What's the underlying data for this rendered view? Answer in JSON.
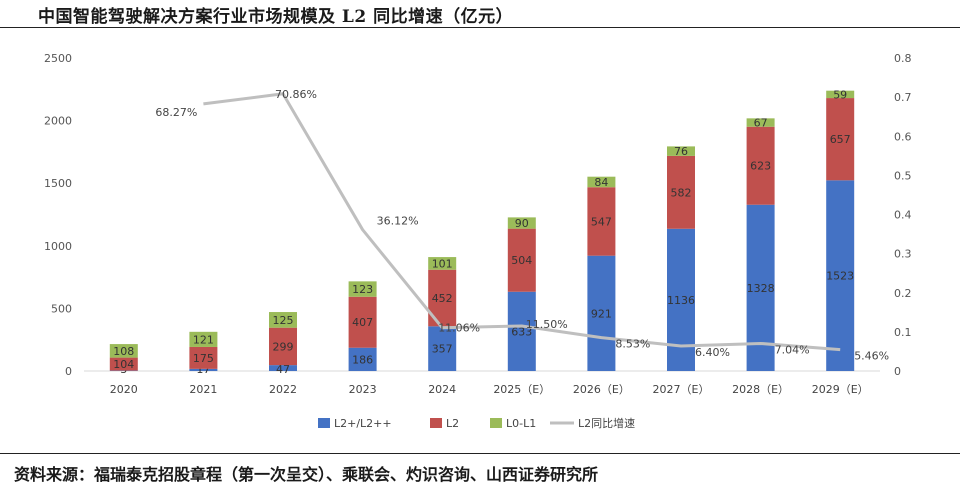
{
  "title": "中国智能驾驶解决方案行业市场规模及 L2 同比增速（亿元）",
  "source": "资料来源：福瑞泰克招股章程（第一次呈交）、乘联会、灼识咨询、山西证券研究所",
  "colors": {
    "L2+/L2++": "#4472c4",
    "L2": "#c0504d",
    "L0-L1": "#9bbb59",
    "L2同比增速": "#bfbfbf"
  },
  "chart_data": {
    "type": "bar",
    "stacked": true,
    "categories": [
      "2020",
      "2021",
      "2022",
      "2023",
      "2024",
      "2025（E）",
      "2026（E）",
      "2027（E）",
      "2028（E）",
      "2029（E）"
    ],
    "series": [
      {
        "name": "L2+/L2++",
        "values": [
          3,
          17,
          47,
          186,
          357,
          633,
          921,
          1136,
          1328,
          1523
        ]
      },
      {
        "name": "L2",
        "values": [
          104,
          175,
          299,
          407,
          452,
          504,
          547,
          582,
          623,
          657
        ]
      },
      {
        "name": "L0-L1",
        "values": [
          108,
          121,
          125,
          123,
          101,
          90,
          84,
          76,
          67,
          59
        ]
      }
    ],
    "line_series": {
      "name": "L2同比增速",
      "axis": "right",
      "start_index": 1,
      "values": [
        0.6827,
        0.7086,
        0.3612,
        0.1106,
        0.115,
        0.0853,
        0.064,
        0.0704,
        0.0546
      ],
      "labels": [
        "68.27%",
        "70.86%",
        "36.12%",
        "11.06%",
        "11.50%",
        "8.53%",
        "6.40%",
        "7.04%",
        "5.46%"
      ]
    },
    "ylim": [
      0,
      2500
    ],
    "yticks": [
      0,
      500,
      1000,
      1500,
      2000,
      2500
    ],
    "y2lim": [
      0,
      0.8
    ],
    "y2ticks": [
      "0",
      "0.1",
      "0.2",
      "0.3",
      "0.4",
      "0.5",
      "0.6",
      "0.7",
      "0.8"
    ],
    "legend": [
      "L2+/L2++",
      "L2",
      "L0-L1",
      "L2同比增速"
    ],
    "legend_position": "bottom",
    "grid": false
  }
}
